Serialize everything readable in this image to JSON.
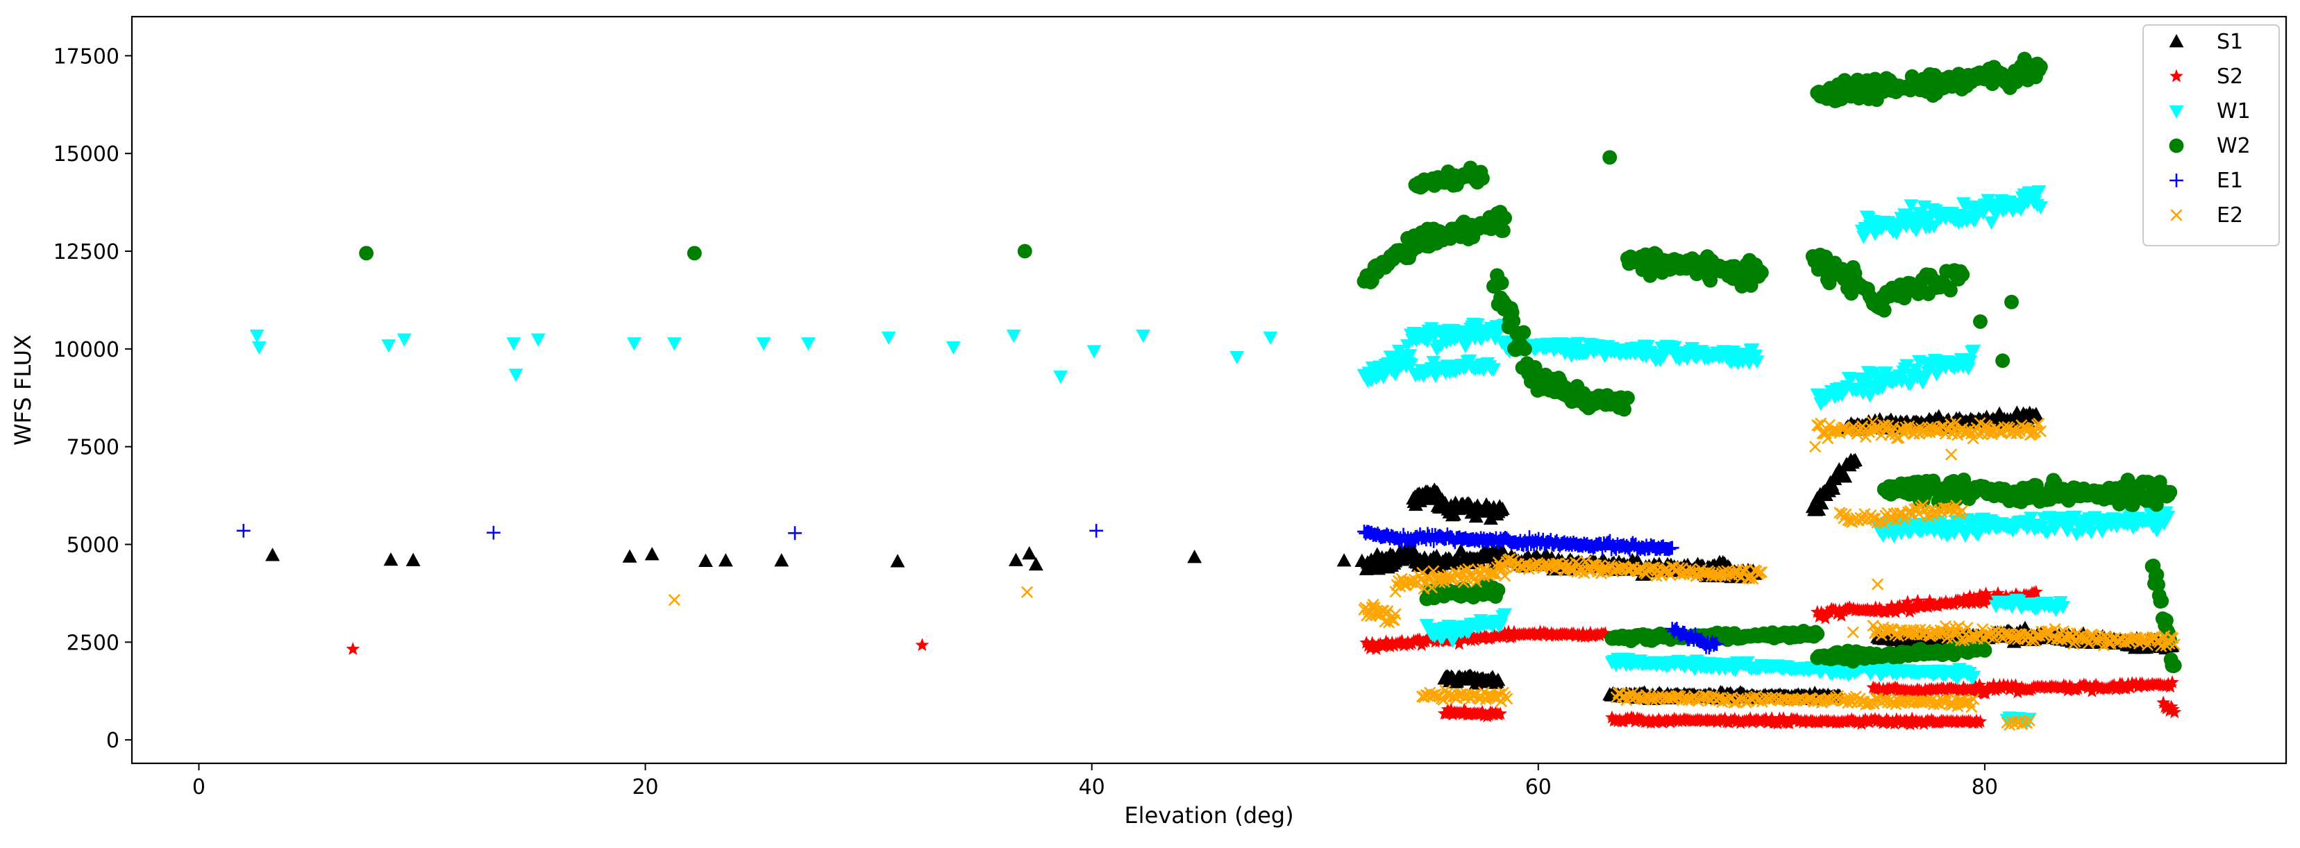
{
  "chart_data": {
    "type": "scatter",
    "title": "",
    "xlabel": "Elevation (deg)",
    "ylabel": "WFS FLUX",
    "xlim": [
      -3,
      93.5
    ],
    "ylim": [
      -600,
      18500
    ],
    "xticks": [
      0,
      20,
      40,
      60,
      80
    ],
    "yticks": [
      0,
      2500,
      5000,
      7500,
      10000,
      12500,
      15000,
      17500
    ],
    "grid": false,
    "legend_position": "top-right",
    "series": [
      {
        "name": "S1",
        "marker": "triangle-up",
        "color": "#000000",
        "points": [
          [
            3.3,
            4720
          ],
          [
            8.6,
            4600
          ],
          [
            9.6,
            4590
          ],
          [
            19.3,
            4680
          ],
          [
            20.3,
            4740
          ],
          [
            22.7,
            4570
          ],
          [
            23.6,
            4580
          ],
          [
            26.1,
            4580
          ],
          [
            31.3,
            4560
          ],
          [
            36.6,
            4590
          ],
          [
            37.2,
            4760
          ],
          [
            37.5,
            4480
          ],
          [
            44.6,
            4670
          ],
          [
            51.3,
            4580
          ],
          [
            52.1,
            4570
          ]
        ],
        "segments": [
          {
            "x": [
              52.3,
              54.4
            ],
            "y0": 4400,
            "y1": 4850,
            "jitter": 350,
            "n": 40
          },
          {
            "x": [
              54.4,
              55.5
            ],
            "y0": 6100,
            "y1": 6300,
            "jitter": 250,
            "n": 30
          },
          {
            "x": [
              55.5,
              58.4
            ],
            "y0": 6000,
            "y1": 5800,
            "jitter": 300,
            "n": 45
          },
          {
            "x": [
              54.5,
              58.5
            ],
            "y0": 4500,
            "y1": 4700,
            "jitter": 250,
            "n": 60
          },
          {
            "x": [
              55.8,
              58.2
            ],
            "y0": 1600,
            "y1": 1500,
            "jitter": 150,
            "n": 40
          },
          {
            "x": [
              58.5,
              69.7
            ],
            "y0": 4600,
            "y1": 4300,
            "jitter": 250,
            "n": 150
          },
          {
            "x": [
              63.2,
              73.5
            ],
            "y0": 1150,
            "y1": 1100,
            "jitter": 110,
            "n": 140
          },
          {
            "x": [
              72.3,
              74.2
            ],
            "y0": 5900,
            "y1": 7200,
            "jitter": 300,
            "n": 30
          },
          {
            "x": [
              73.8,
              82.3
            ],
            "y0": 8000,
            "y1": 8250,
            "jitter": 180,
            "n": 120
          },
          {
            "x": [
              75.2,
              82.0
            ],
            "y0": 2600,
            "y1": 2650,
            "jitter": 150,
            "n": 90
          },
          {
            "x": [
              80.5,
              88.4
            ],
            "y0": 2750,
            "y1": 2400,
            "jitter": 180,
            "n": 110
          }
        ]
      },
      {
        "name": "S2",
        "marker": "star",
        "color": "#ff0000",
        "points": [
          [
            6.9,
            2320
          ],
          [
            32.4,
            2420
          ]
        ],
        "segments": [
          {
            "x": [
              52.3,
              58.4
            ],
            "y0": 2400,
            "y1": 2650,
            "jitter": 150,
            "n": 70
          },
          {
            "x": [
              55.8,
              58.3
            ],
            "y0": 700,
            "y1": 650,
            "jitter": 100,
            "n": 35
          },
          {
            "x": [
              58.5,
              63.0
            ],
            "y0": 2700,
            "y1": 2700,
            "jitter": 100,
            "n": 55
          },
          {
            "x": [
              63.3,
              79.8
            ],
            "y0": 500,
            "y1": 450,
            "jitter": 90,
            "n": 190
          },
          {
            "x": [
              72.5,
              82.3
            ],
            "y0": 3200,
            "y1": 3700,
            "jitter": 170,
            "n": 110
          },
          {
            "x": [
              75.0,
              88.4
            ],
            "y0": 1250,
            "y1": 1400,
            "jitter": 140,
            "n": 150
          },
          {
            "x": [
              88.0,
              88.5
            ],
            "y0": 900,
            "y1": 700,
            "jitter": 150,
            "n": 8
          }
        ]
      },
      {
        "name": "W1",
        "marker": "triangle-down",
        "color": "#00ffff",
        "points": [
          [
            2.6,
            10350
          ],
          [
            2.7,
            10050
          ],
          [
            8.5,
            10100
          ],
          [
            9.2,
            10250
          ],
          [
            14.1,
            10150
          ],
          [
            14.2,
            9350
          ],
          [
            15.2,
            10250
          ],
          [
            19.5,
            10150
          ],
          [
            21.3,
            10150
          ],
          [
            25.3,
            10150
          ],
          [
            27.3,
            10150
          ],
          [
            30.9,
            10300
          ],
          [
            33.8,
            10050
          ],
          [
            36.5,
            10350
          ],
          [
            38.6,
            9300
          ],
          [
            40.1,
            9950
          ],
          [
            42.3,
            10350
          ],
          [
            46.5,
            9800
          ],
          [
            48.0,
            10300
          ]
        ],
        "segments": [
          {
            "x": [
              52.2,
              54.3
            ],
            "y0": 9300,
            "y1": 9800,
            "jitter": 450,
            "n": 40
          },
          {
            "x": [
              54.3,
              58.5
            ],
            "y0": 10300,
            "y1": 10400,
            "jitter": 400,
            "n": 70
          },
          {
            "x": [
              54.5,
              58.0
            ],
            "y0": 9400,
            "y1": 9600,
            "jitter": 300,
            "n": 40
          },
          {
            "x": [
              58.5,
              69.8
            ],
            "y0": 10100,
            "y1": 9800,
            "jitter": 250,
            "n": 160
          },
          {
            "x": [
              55.0,
              58.5
            ],
            "y0": 2700,
            "y1": 3000,
            "jitter": 300,
            "n": 40
          },
          {
            "x": [
              63.3,
              79.5
            ],
            "y0": 2000,
            "y1": 1700,
            "jitter": 150,
            "n": 180
          },
          {
            "x": [
              72.5,
              79.5
            ],
            "y0": 8800,
            "y1": 9800,
            "jitter": 400,
            "n": 90
          },
          {
            "x": [
              74.5,
              82.5
            ],
            "y0": 13100,
            "y1": 13800,
            "jitter": 450,
            "n": 110
          },
          {
            "x": [
              75.2,
              88.2
            ],
            "y0": 5400,
            "y1": 5600,
            "jitter": 350,
            "n": 160
          },
          {
            "x": [
              80.5,
              83.5
            ],
            "y0": 3500,
            "y1": 3400,
            "jitter": 150,
            "n": 30
          },
          {
            "x": [
              81.0,
              82.0
            ],
            "y0": 600,
            "y1": 500,
            "jitter": 150,
            "n": 10
          }
        ]
      },
      {
        "name": "W2",
        "marker": "circle",
        "color": "#008000",
        "points": [
          [
            7.5,
            12450
          ],
          [
            22.2,
            12450
          ],
          [
            37.0,
            12500
          ],
          [
            63.2,
            14900
          ],
          [
            79.8,
            10700
          ],
          [
            80.8,
            9700
          ],
          [
            81.2,
            11200
          ]
        ],
        "segments": [
          {
            "x": [
              52.2,
              54.5
            ],
            "y0": 11800,
            "y1": 12700,
            "jitter": 350,
            "n": 40
          },
          {
            "x": [
              54.5,
              58.5
            ],
            "y0": 12700,
            "y1": 13300,
            "jitter": 400,
            "n": 60
          },
          {
            "x": [
              54.5,
              57.5
            ],
            "y0": 14200,
            "y1": 14500,
            "jitter": 300,
            "n": 40
          },
          {
            "x": [
              58.0,
              59.5
            ],
            "y0": 11800,
            "y1": 9600,
            "jitter": 700,
            "n": 30
          },
          {
            "x": [
              59.5,
              61.8
            ],
            "y0": 9400,
            "y1": 8800,
            "jitter": 500,
            "n": 40
          },
          {
            "x": [
              61.8,
              64.0
            ],
            "y0": 8700,
            "y1": 8600,
            "jitter": 300,
            "n": 30
          },
          {
            "x": [
              64.0,
              70.0
            ],
            "y0": 12300,
            "y1": 11900,
            "jitter": 400,
            "n": 90
          },
          {
            "x": [
              55.0,
              58.2
            ],
            "y0": 3700,
            "y1": 3800,
            "jitter": 300,
            "n": 30
          },
          {
            "x": [
              63.3,
              72.5
            ],
            "y0": 2600,
            "y1": 2700,
            "jitter": 120,
            "n": 120
          },
          {
            "x": [
              72.3,
              75.5
            ],
            "y0": 12300,
            "y1": 11200,
            "jitter": 600,
            "n": 40
          },
          {
            "x": [
              75.5,
              79.0
            ],
            "y0": 11400,
            "y1": 11800,
            "jitter": 400,
            "n": 40
          },
          {
            "x": [
              72.5,
              82.5
            ],
            "y0": 16500,
            "y1": 17100,
            "jitter": 400,
            "n": 140
          },
          {
            "x": [
              72.5,
              80.0
            ],
            "y0": 2100,
            "y1": 2300,
            "jitter": 160,
            "n": 100
          },
          {
            "x": [
              75.5,
              88.3
            ],
            "y0": 6400,
            "y1": 6300,
            "jitter": 400,
            "n": 170
          },
          {
            "x": [
              87.5,
              88.5
            ],
            "y0": 4500,
            "y1": 2000,
            "jitter": 400,
            "n": 20
          }
        ]
      },
      {
        "name": "E1",
        "marker": "plus",
        "color": "#0000ff",
        "points": [
          [
            2.0,
            5350
          ],
          [
            13.2,
            5300
          ],
          [
            26.7,
            5290
          ],
          [
            40.2,
            5350
          ]
        ],
        "segments": [
          {
            "x": [
              52.2,
              54.5
            ],
            "y0": 5300,
            "y1": 5100,
            "jitter": 120,
            "n": 35
          },
          {
            "x": [
              54.5,
              66.0
            ],
            "y0": 5200,
            "y1": 4900,
            "jitter": 140,
            "n": 170
          },
          {
            "x": [
              66.0,
              68.0
            ],
            "y0": 2800,
            "y1": 2400,
            "jitter": 180,
            "n": 30
          }
        ]
      },
      {
        "name": "E2",
        "marker": "x",
        "color": "#ffa500",
        "points": [
          [
            21.3,
            3580
          ],
          [
            37.1,
            3780
          ],
          [
            72.4,
            7500
          ],
          [
            74.1,
            2750
          ],
          [
            75.2,
            3980
          ],
          [
            78.5,
            7300
          ]
        ],
        "segments": [
          {
            "x": [
              52.2,
              53.6
            ],
            "y0": 3300,
            "y1": 3100,
            "jitter": 300,
            "n": 25
          },
          {
            "x": [
              53.6,
              58.5
            ],
            "y0": 4000,
            "y1": 4300,
            "jitter": 300,
            "n": 70
          },
          {
            "x": [
              58.5,
              70.0
            ],
            "y0": 4500,
            "y1": 4200,
            "jitter": 200,
            "n": 150
          },
          {
            "x": [
              54.8,
              58.6
            ],
            "y0": 1150,
            "y1": 1100,
            "jitter": 150,
            "n": 45
          },
          {
            "x": [
              63.5,
              79.5
            ],
            "y0": 1100,
            "y1": 950,
            "jitter": 130,
            "n": 180
          },
          {
            "x": [
              72.5,
              82.5
            ],
            "y0": 7900,
            "y1": 7950,
            "jitter": 250,
            "n": 130
          },
          {
            "x": [
              73.5,
              79.0
            ],
            "y0": 5600,
            "y1": 5900,
            "jitter": 250,
            "n": 60
          },
          {
            "x": [
              75.0,
              88.5
            ],
            "y0": 2800,
            "y1": 2500,
            "jitter": 250,
            "n": 180
          },
          {
            "x": [
              81.0,
              82.0
            ],
            "y0": 400,
            "y1": 450,
            "jitter": 100,
            "n": 10
          }
        ]
      }
    ]
  }
}
